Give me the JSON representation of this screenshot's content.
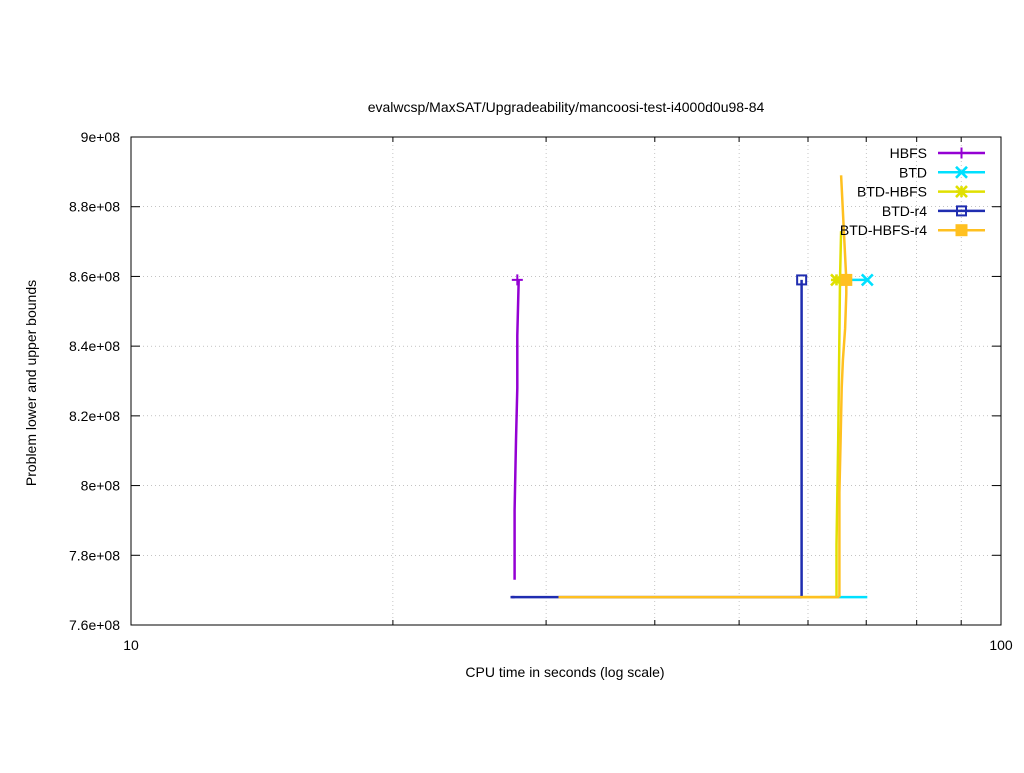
{
  "chart_data": {
    "type": "line",
    "title": "evalwcsp/MaxSAT/Upgradeability/mancoosi-test-i4000d0u98-84",
    "xlabel": "CPU time in seconds (log scale)",
    "ylabel": "Problem lower and upper bounds",
    "x_scale": "log",
    "xlim": [
      10,
      100
    ],
    "ylim": [
      760000000,
      900000000
    ],
    "x_ticks": [
      10,
      100
    ],
    "x_tick_labels": [
      "10",
      "100"
    ],
    "y_ticks": [
      760000000,
      780000000,
      800000000,
      820000000,
      840000000,
      860000000,
      880000000,
      900000000
    ],
    "y_tick_labels": [
      "7.6e+08",
      "7.8e+08",
      "8e+08",
      "8.2e+08",
      "8.4e+08",
      "8.6e+08",
      "8.8e+08",
      "9e+08"
    ],
    "legend_position": "top-right",
    "series": [
      {
        "name": "HBFS",
        "color": "#9400d3",
        "marker": "plus",
        "upper": [
          [
            27.6,
            773000000
          ],
          [
            27.6,
            793000000
          ],
          [
            27.7,
            813000000
          ],
          [
            27.8,
            828000000
          ],
          [
            27.8,
            843000000
          ],
          [
            27.9,
            859000000
          ]
        ],
        "lower": [
          [
            27.4,
            768000000
          ],
          [
            27.6,
            768000000
          ]
        ],
        "final": [
          27.8,
          859000000
        ]
      },
      {
        "name": "BTD",
        "color": "#00e0ff",
        "marker": "x",
        "upper": [
          [
            65.0,
            859000000
          ],
          [
            66.5,
            859000000
          ],
          [
            70.2,
            859000000
          ]
        ],
        "lower": [
          [
            62.0,
            768000000
          ],
          [
            70.2,
            768000000
          ]
        ],
        "final": [
          70.2,
          859000000
        ]
      },
      {
        "name": "BTD-HBFS",
        "color": "#e0e000",
        "marker": "x-filled",
        "upper": [
          [
            64.7,
            768000000
          ],
          [
            64.7,
            783000000
          ],
          [
            65.0,
            813000000
          ],
          [
            65.2,
            843000000
          ],
          [
            65.3,
            859000000
          ],
          [
            65.5,
            873000000
          ]
        ],
        "lower": [
          [
            58.5,
            768000000
          ],
          [
            64.7,
            768000000
          ]
        ],
        "final": [
          64.7,
          859000000
        ]
      },
      {
        "name": "BTD-r4",
        "color": "#1f2db0",
        "marker": "square",
        "upper": [
          [
            59.0,
            768000000
          ],
          [
            59.0,
            859000000
          ]
        ],
        "lower": [
          [
            27.3,
            768000000
          ],
          [
            59.0,
            768000000
          ]
        ],
        "final": [
          59.0,
          859000000
        ]
      },
      {
        "name": "BTD-HBFS-r4",
        "color": "#ffc020",
        "marker": "square-filled",
        "upper": [
          [
            65.2,
            768000000
          ],
          [
            65.2,
            798000000
          ],
          [
            65.4,
            813000000
          ],
          [
            65.6,
            828000000
          ],
          [
            65.8,
            836000000
          ],
          [
            66.2,
            845000000
          ],
          [
            66.4,
            855000000
          ],
          [
            66.4,
            859000000
          ],
          [
            65.5,
            889000000
          ]
        ],
        "lower": [
          [
            31.0,
            768000000
          ],
          [
            65.2,
            768000000
          ]
        ],
        "final": [
          66.4,
          859000000
        ]
      }
    ]
  }
}
